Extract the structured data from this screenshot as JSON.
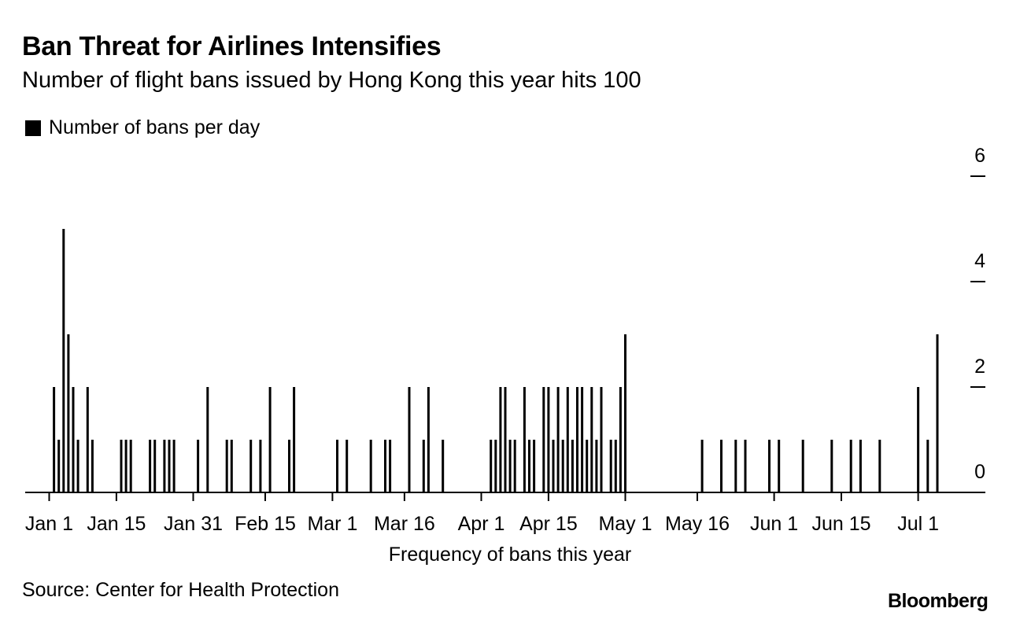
{
  "chart_data": {
    "type": "bar",
    "title": "Ban Threat for Airlines Intensifies",
    "subtitle": "Number of flight bans issued by Hong Kong this year hits 100",
    "legend": [
      "Number of bans per day"
    ],
    "xlabel": "Frequency of bans this year",
    "ylabel": "",
    "ylim": [
      0,
      6
    ],
    "y_ticks": [
      0,
      2,
      4,
      6
    ],
    "x_ticks": [
      {
        "day": 1,
        "label": "Jan 1"
      },
      {
        "day": 15,
        "label": "Jan 15"
      },
      {
        "day": 31,
        "label": "Jan 31"
      },
      {
        "day": 46,
        "label": "Feb 15"
      },
      {
        "day": 60,
        "label": "Mar 1"
      },
      {
        "day": 75,
        "label": "Mar 16"
      },
      {
        "day": 91,
        "label": "Apr 1"
      },
      {
        "day": 105,
        "label": "Apr 15"
      },
      {
        "day": 121,
        "label": "May 1"
      },
      {
        "day": 136,
        "label": "May 16"
      },
      {
        "day": 152,
        "label": "Jun 1"
      },
      {
        "day": 166,
        "label": "Jun 15"
      },
      {
        "day": 182,
        "label": "Jul 1"
      }
    ],
    "x_range": [
      -4,
      196
    ],
    "series": [
      {
        "name": "Number of bans per day",
        "points": [
          {
            "day": 2,
            "value": 2
          },
          {
            "day": 3,
            "value": 1
          },
          {
            "day": 4,
            "value": 5
          },
          {
            "day": 5,
            "value": 3
          },
          {
            "day": 6,
            "value": 2
          },
          {
            "day": 7,
            "value": 1
          },
          {
            "day": 9,
            "value": 2
          },
          {
            "day": 10,
            "value": 1
          },
          {
            "day": 16,
            "value": 1
          },
          {
            "day": 17,
            "value": 1
          },
          {
            "day": 18,
            "value": 1
          },
          {
            "day": 22,
            "value": 1
          },
          {
            "day": 23,
            "value": 1
          },
          {
            "day": 25,
            "value": 1
          },
          {
            "day": 26,
            "value": 1
          },
          {
            "day": 27,
            "value": 1
          },
          {
            "day": 32,
            "value": 1
          },
          {
            "day": 34,
            "value": 2
          },
          {
            "day": 38,
            "value": 1
          },
          {
            "day": 39,
            "value": 1
          },
          {
            "day": 43,
            "value": 1
          },
          {
            "day": 45,
            "value": 1
          },
          {
            "day": 47,
            "value": 2
          },
          {
            "day": 51,
            "value": 1
          },
          {
            "day": 52,
            "value": 2
          },
          {
            "day": 61,
            "value": 1
          },
          {
            "day": 63,
            "value": 1
          },
          {
            "day": 68,
            "value": 1
          },
          {
            "day": 71,
            "value": 1
          },
          {
            "day": 72,
            "value": 1
          },
          {
            "day": 76,
            "value": 2
          },
          {
            "day": 79,
            "value": 1
          },
          {
            "day": 80,
            "value": 2
          },
          {
            "day": 83,
            "value": 1
          },
          {
            "day": 93,
            "value": 1
          },
          {
            "day": 94,
            "value": 1
          },
          {
            "day": 95,
            "value": 2
          },
          {
            "day": 96,
            "value": 2
          },
          {
            "day": 97,
            "value": 1
          },
          {
            "day": 98,
            "value": 1
          },
          {
            "day": 100,
            "value": 2
          },
          {
            "day": 101,
            "value": 1
          },
          {
            "day": 102,
            "value": 1
          },
          {
            "day": 104,
            "value": 2
          },
          {
            "day": 105,
            "value": 2
          },
          {
            "day": 106,
            "value": 1
          },
          {
            "day": 107,
            "value": 2
          },
          {
            "day": 108,
            "value": 1
          },
          {
            "day": 109,
            "value": 2
          },
          {
            "day": 110,
            "value": 1
          },
          {
            "day": 111,
            "value": 2
          },
          {
            "day": 112,
            "value": 2
          },
          {
            "day": 113,
            "value": 1
          },
          {
            "day": 114,
            "value": 2
          },
          {
            "day": 115,
            "value": 1
          },
          {
            "day": 116,
            "value": 2
          },
          {
            "day": 118,
            "value": 1
          },
          {
            "day": 119,
            "value": 1
          },
          {
            "day": 120,
            "value": 2
          },
          {
            "day": 121,
            "value": 3
          },
          {
            "day": 137,
            "value": 1
          },
          {
            "day": 141,
            "value": 1
          },
          {
            "day": 144,
            "value": 1
          },
          {
            "day": 146,
            "value": 1
          },
          {
            "day": 151,
            "value": 1
          },
          {
            "day": 153,
            "value": 1
          },
          {
            "day": 158,
            "value": 1
          },
          {
            "day": 164,
            "value": 1
          },
          {
            "day": 168,
            "value": 1
          },
          {
            "day": 170,
            "value": 1
          },
          {
            "day": 174,
            "value": 1
          },
          {
            "day": 182,
            "value": 2
          },
          {
            "day": 184,
            "value": 1
          },
          {
            "day": 186,
            "value": 3
          }
        ]
      }
    ]
  },
  "source": "Source: Center for Health Protection",
  "brand": "Bloomberg"
}
